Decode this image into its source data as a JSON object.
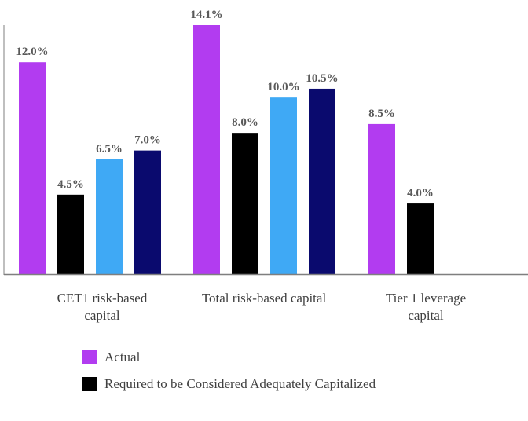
{
  "chart_data": {
    "type": "bar",
    "title": "",
    "xlabel": "",
    "ylabel": "",
    "ylim": [
      0,
      14.1
    ],
    "grid": false,
    "categories": [
      [
        "CET1 risk-based",
        "capital"
      ],
      [
        "Total risk-based capital"
      ],
      [
        "Tier 1 leverage",
        "capital"
      ]
    ],
    "series": [
      {
        "name": "Actual",
        "color": "#b23cf0",
        "values": [
          12.0,
          14.1,
          8.5
        ],
        "labels": [
          "12.0%",
          "14.1%",
          "8.5%"
        ]
      },
      {
        "name": "Required to be Considered Adequately Capitalized",
        "color": "#000000",
        "values": [
          4.5,
          8.0,
          4.0
        ],
        "labels": [
          "4.5%",
          "8.0%",
          "4.0%"
        ]
      },
      {
        "name": "",
        "color": "#3fa9f5",
        "values": [
          6.5,
          10.0,
          null
        ],
        "labels": [
          "6.5%",
          "10.0%",
          null
        ]
      },
      {
        "name": "",
        "color": "#0a0a6e",
        "values": [
          7.0,
          10.5,
          null
        ],
        "labels": [
          "7.0%",
          "10.5%",
          null
        ]
      }
    ],
    "legend": {
      "placement": "bottom-left",
      "entries": [
        "Actual",
        "Required to be Considered Adequately Capitalized"
      ]
    }
  }
}
